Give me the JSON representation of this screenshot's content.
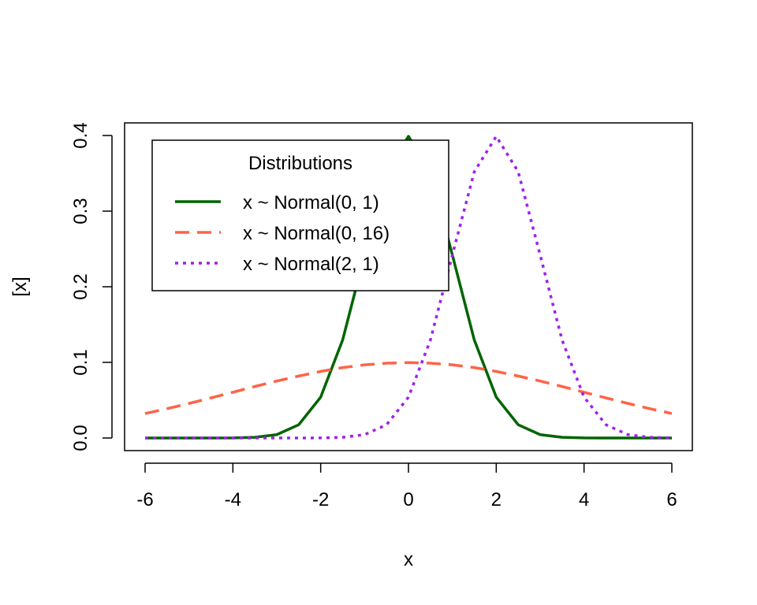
{
  "chart_data": {
    "type": "line",
    "title": "",
    "xlabel": "x",
    "ylabel": "[x]",
    "xlim": [
      -6,
      6
    ],
    "ylim": [
      0,
      0.4
    ],
    "xticks": [
      "-6",
      "-4",
      "-2",
      "0",
      "2",
      "4",
      "6"
    ],
    "yticks": [
      "0.0",
      "0.1",
      "0.2",
      "0.3",
      "0.4"
    ],
    "grid": false,
    "legend": {
      "title": "Distributions",
      "position": "top-left",
      "entries": [
        "x ~ Normal(0, 1)",
        "x ~ Normal(0, 16)",
        "x ~ Normal(2, 1)"
      ]
    },
    "x": [
      -6,
      -5.5,
      -5,
      -4.5,
      -4,
      -3.5,
      -3,
      -2.5,
      -2,
      -1.5,
      -1,
      -0.5,
      0,
      0.5,
      1,
      1.5,
      2,
      2.5,
      3,
      3.5,
      4,
      4.5,
      5,
      5.5,
      6
    ],
    "series": [
      {
        "name": "x ~ Normal(0, 1)",
        "color": "#006400",
        "dash": "solid",
        "values": [
          0.0,
          0.0,
          0.0,
          0.0,
          0.0001,
          0.0009,
          0.0044,
          0.0175,
          0.054,
          0.1295,
          0.242,
          0.3521,
          0.3989,
          0.3521,
          0.242,
          0.1295,
          0.054,
          0.0175,
          0.0044,
          0.0009,
          0.0001,
          0.0,
          0.0,
          0.0,
          0.0
        ]
      },
      {
        "name": "x ~ Normal(0, 16)",
        "color": "#FF6347",
        "dash": "dashed",
        "values": [
          0.0324,
          0.0387,
          0.0457,
          0.053,
          0.0605,
          0.0681,
          0.0753,
          0.0819,
          0.088,
          0.0931,
          0.0967,
          0.0989,
          0.0997,
          0.0989,
          0.0967,
          0.0931,
          0.088,
          0.0819,
          0.0753,
          0.0681,
          0.0605,
          0.053,
          0.0457,
          0.0387,
          0.0324
        ]
      },
      {
        "name": "x ~ Normal(2, 1)",
        "color": "#A020F0",
        "dash": "dotted",
        "values": [
          0.0,
          0.0,
          0.0,
          0.0,
          0.0,
          0.0,
          0.0,
          0.0,
          0.0001,
          0.0009,
          0.0044,
          0.0175,
          0.054,
          0.1295,
          0.242,
          0.3521,
          0.3989,
          0.3521,
          0.242,
          0.1295,
          0.054,
          0.0175,
          0.0044,
          0.0009,
          0.0001
        ]
      }
    ]
  }
}
